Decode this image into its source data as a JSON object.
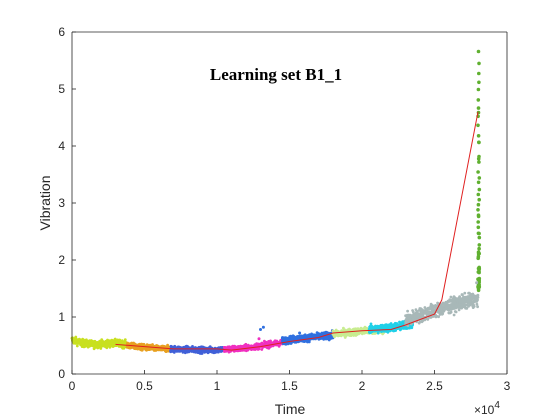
{
  "chart_data": {
    "type": "scatter",
    "title": "Learning set B1_1",
    "xlabel": "Time",
    "ylabel": "Vibration",
    "x_multiplier_label": "×10",
    "x_multiplier_exp": "4",
    "xlim": [
      0,
      3
    ],
    "ylim": [
      0,
      6
    ],
    "x_ticks": [
      {
        "v": 0,
        "label": "0"
      },
      {
        "v": 0.5,
        "label": "0.5"
      },
      {
        "v": 1,
        "label": "1"
      },
      {
        "v": 1.5,
        "label": "1.5"
      },
      {
        "v": 2,
        "label": "2"
      },
      {
        "v": 2.5,
        "label": "2.5"
      },
      {
        "v": 3,
        "label": "3"
      }
    ],
    "y_ticks": [
      {
        "v": 0,
        "label": "0"
      },
      {
        "v": 1,
        "label": "1"
      },
      {
        "v": 2,
        "label": "2"
      },
      {
        "v": 3,
        "label": "3"
      },
      {
        "v": 4,
        "label": "4"
      },
      {
        "v": 5,
        "label": "5"
      },
      {
        "v": 6,
        "label": "6"
      }
    ],
    "grid": false,
    "point_series": [
      {
        "color": "#c8e020",
        "x0": 0.0,
        "x1": 0.38,
        "y": [
          0.6,
          0.54,
          0.52,
          0.53,
          0.54,
          0.52
        ],
        "noise": 0.06
      },
      {
        "color": "#e8a020",
        "x0": 0.38,
        "x1": 0.68,
        "y": [
          0.5,
          0.47,
          0.45,
          0.44
        ],
        "noise": 0.05
      },
      {
        "color": "#4060d8",
        "x0": 0.68,
        "x1": 1.05,
        "y": [
          0.44,
          0.43,
          0.42,
          0.43
        ],
        "noise": 0.05
      },
      {
        "color": "#f030c0",
        "x0": 1.05,
        "x1": 1.45,
        "y": [
          0.43,
          0.45,
          0.5,
          0.55
        ],
        "noise": 0.05
      },
      {
        "color": "#3070e0",
        "x0": 1.45,
        "x1": 1.8,
        "y": [
          0.58,
          0.62,
          0.65,
          0.68
        ],
        "noise": 0.06
      },
      {
        "color": "#c8ec90",
        "x0": 1.8,
        "x1": 2.15,
        "y": [
          0.7,
          0.73,
          0.76,
          0.78
        ],
        "noise": 0.06
      },
      {
        "color": "#20d0e8",
        "x0": 2.05,
        "x1": 2.35,
        "y": [
          0.78,
          0.8,
          0.83,
          0.88
        ],
        "noise": 0.07
      },
      {
        "color": "#a8b8b8",
        "x0": 2.3,
        "x1": 2.8,
        "y": [
          0.95,
          1.05,
          1.15,
          1.25,
          1.32
        ],
        "noise": 0.12
      },
      {
        "color": "#60b030",
        "x0": 2.8,
        "x1": 2.81,
        "y": [
          1.5,
          5.6
        ],
        "noise": 0.08
      }
    ],
    "outliers": [
      {
        "x": 1.32,
        "y": 0.82,
        "color": "#3070e0"
      },
      {
        "x": 1.3,
        "y": 0.78,
        "color": "#3070e0"
      },
      {
        "x": 1.29,
        "y": 0.62,
        "color": "#f030c0"
      },
      {
        "x": 1.57,
        "y": 0.72,
        "color": "#3070e0"
      },
      {
        "x": 2.79,
        "y": 1.6,
        "color": "#a8b8b8"
      }
    ],
    "trend_line": {
      "color": "#e02020",
      "x": [
        0.3,
        0.5,
        0.7,
        1.0,
        1.1,
        1.2,
        1.3,
        1.5,
        1.7,
        1.8,
        2.0,
        2.2,
        2.3,
        2.5,
        2.55,
        2.8
      ],
      "y": [
        0.52,
        0.48,
        0.44,
        0.44,
        0.42,
        0.45,
        0.48,
        0.57,
        0.64,
        0.72,
        0.76,
        0.78,
        0.86,
        1.05,
        1.3,
        4.6
      ]
    }
  }
}
